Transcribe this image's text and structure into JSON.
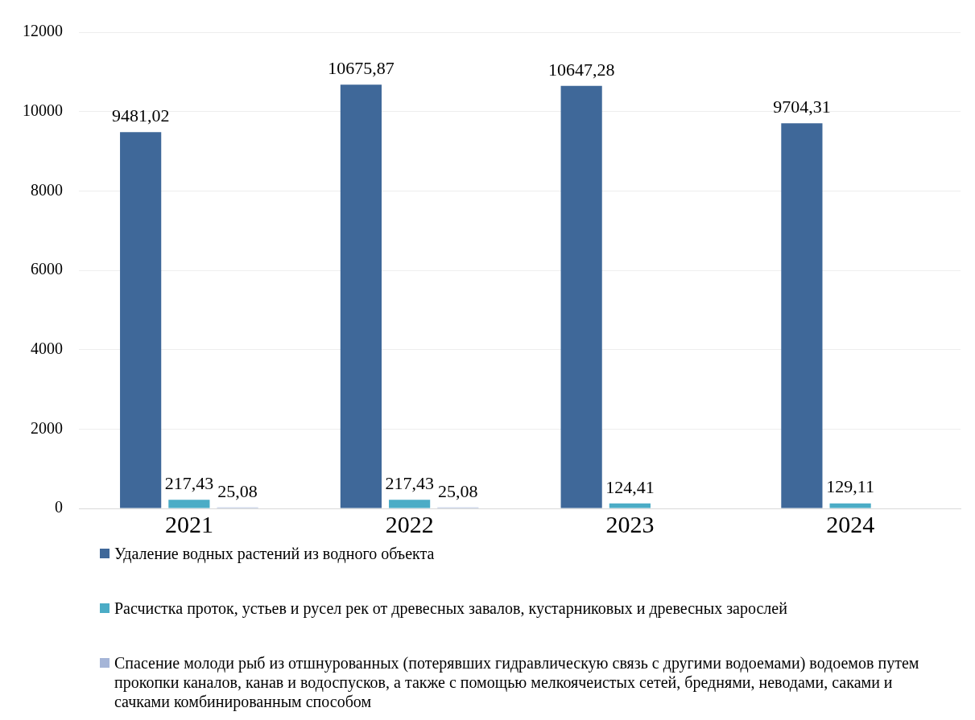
{
  "chart_data": {
    "type": "bar",
    "categories": [
      "2021",
      "2022",
      "2023",
      "2024"
    ],
    "series": [
      {
        "name": "Удаление водных растений из водного объекта",
        "color": "#3f6899",
        "values": [
          9481.02,
          10675.87,
          10647.28,
          9704.31
        ],
        "value_labels": [
          "9481,02",
          "10675,87",
          "10647,28",
          "9704,31"
        ]
      },
      {
        "name": "Расчистка проток, устьев и русел рек от древесных завалов, кустарниковых и древесных зарослей",
        "color": "#4bacc6",
        "values": [
          217.43,
          217.43,
          124.41,
          129.11
        ],
        "value_labels": [
          "217,43",
          "217,43",
          "124,41",
          "129,11"
        ]
      },
      {
        "name": "Спасение молоди рыб из отшнурованных (потерявших гидравлическую связь с другими водоемами) водоемов путем прокопки каналов, канав и водоспусков, а также с помощью мелкоячеистых сетей, бреднями, неводами, саками и сачками комбинированным способом",
        "color": "#a5b5d7",
        "values": [
          25.08,
          25.08,
          null,
          null
        ],
        "value_labels": [
          "25,08",
          "25,08",
          null,
          null
        ]
      }
    ],
    "ylim": [
      0,
      12000
    ],
    "yticks": [
      0,
      2000,
      4000,
      6000,
      8000,
      10000,
      12000
    ],
    "grid": "y",
    "legend": "bottom"
  }
}
